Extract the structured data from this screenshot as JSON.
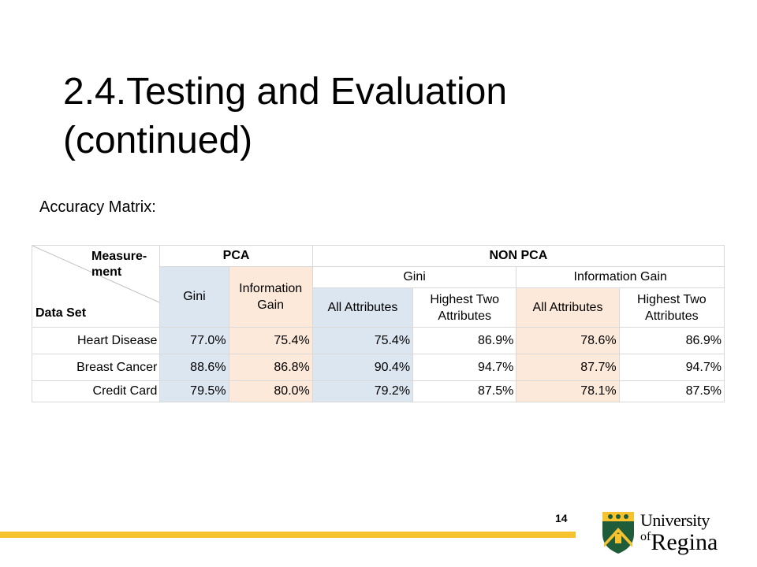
{
  "slide": {
    "title_line1": "2.4.Testing and Evaluation",
    "title_line2": "(continued)",
    "subtitle": "Accuracy Matrix:",
    "page_number": "14"
  },
  "table": {
    "corner_measurement_line1": "Measure-",
    "corner_measurement_line2": "ment",
    "corner_dataset": "Data Set",
    "group_pca": "PCA",
    "group_non_pca": "NON PCA",
    "pca_gini": "Gini",
    "pca_info_gain_line1": "Information",
    "pca_info_gain_line2": "Gain",
    "nonpca_gini": "Gini",
    "nonpca_info_gain": "Information Gain",
    "all_attributes": "All Attributes",
    "highest_two_line1": "Highest Two",
    "highest_two_line2": "Attributes",
    "rows": [
      {
        "dataset": "Heart Disease",
        "values": [
          "77.0%",
          "75.4%",
          "75.4%",
          "86.9%",
          "78.6%",
          "86.9%"
        ]
      },
      {
        "dataset": "Breast Cancer",
        "values": [
          "88.6%",
          "86.8%",
          "90.4%",
          "94.7%",
          "87.7%",
          "94.7%"
        ]
      },
      {
        "dataset": "Credit Card",
        "values": [
          "79.5%",
          "80.0%",
          "79.2%",
          "87.5%",
          "78.1%",
          "87.5%"
        ]
      }
    ]
  },
  "logo": {
    "line1": "University",
    "of": "of",
    "line2": "Regina",
    "shield_color": "#1f5c3a",
    "accent_color": "#f6c22e"
  },
  "colors": {
    "blue_cell": "#dce6f1",
    "peach_cell": "#fde9d9",
    "bottom_bar": "#f6c22e"
  }
}
